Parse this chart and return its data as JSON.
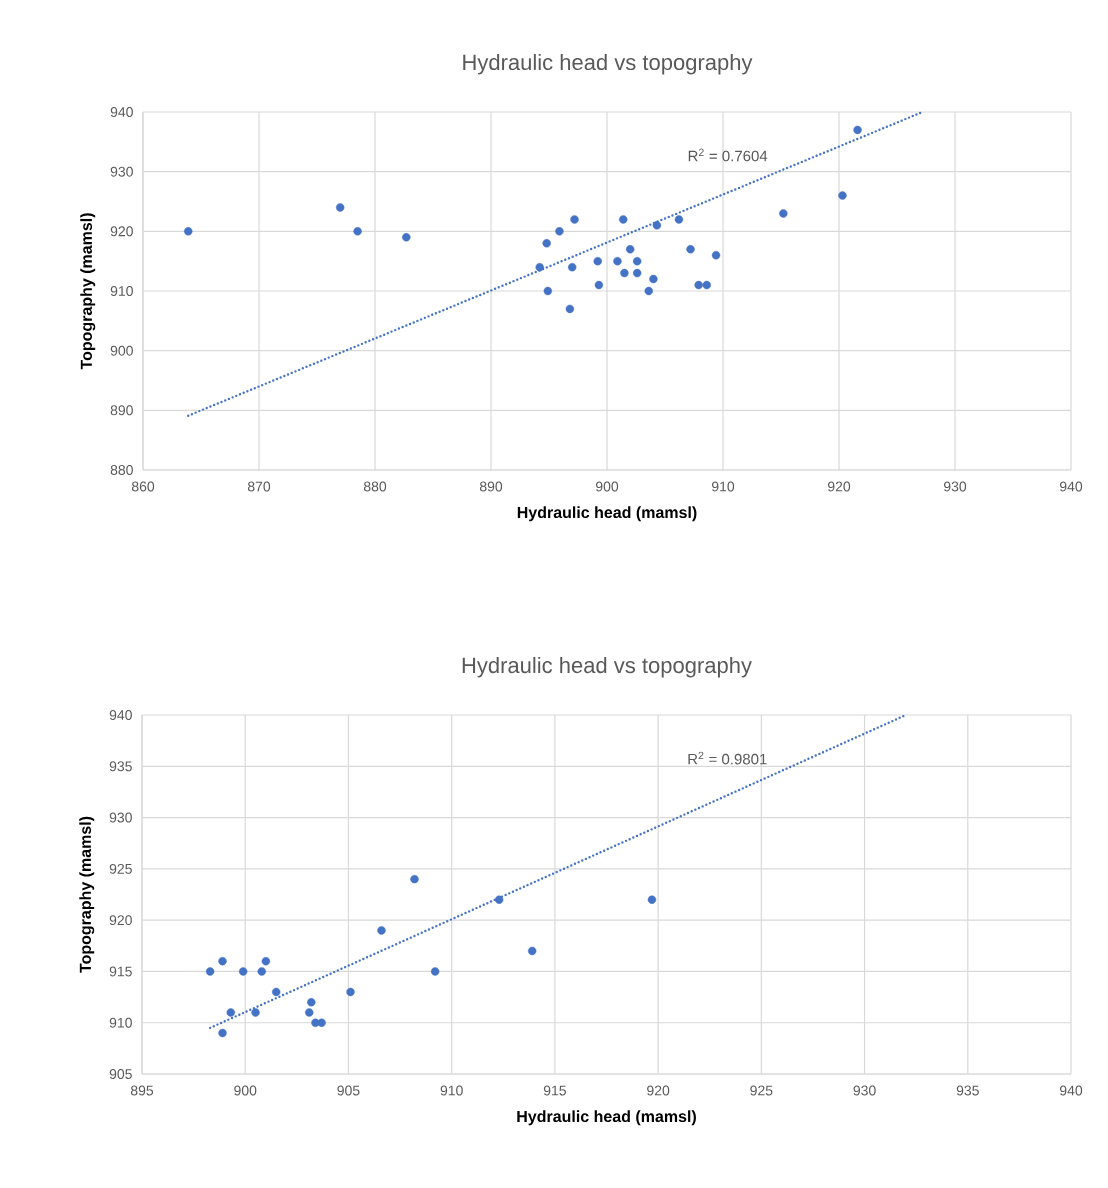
{
  "chart_data": [
    {
      "type": "scatter",
      "title": "Hydraulic head vs topography",
      "xlabel": "Hydraulic head (mamsl)",
      "ylabel": "Topography (mamsl)",
      "xlim": [
        860,
        940
      ],
      "xticks": [
        860,
        870,
        880,
        890,
        900,
        910,
        920,
        930,
        940
      ],
      "ylim": [
        880,
        940
      ],
      "yticks": [
        880,
        890,
        900,
        910,
        920,
        930,
        940
      ],
      "grid": true,
      "series": [
        {
          "marker": "circle",
          "color": "#4472c4",
          "x": [
            863.9,
            877.0,
            878.5,
            882.7,
            894.8,
            895.9,
            897.2,
            894.2,
            897.0,
            894.9,
            896.8,
            899.2,
            899.3,
            900.9,
            901.4,
            901.5,
            902.0,
            902.6,
            902.6,
            903.6,
            904.0,
            904.3,
            906.2,
            907.2,
            907.9,
            908.6,
            909.4,
            915.2,
            920.3,
            921.6
          ],
          "values": [
            920,
            924,
            920,
            919,
            918,
            920,
            922,
            914,
            914,
            910,
            907,
            915,
            911,
            915,
            922,
            913,
            917,
            915,
            913,
            910,
            912,
            921,
            922,
            917,
            911,
            911,
            916,
            923,
            926,
            937
          ]
        },
        {
          "type": "line",
          "line_style": "dotted",
          "marker": "none",
          "color": "#4472c4",
          "x": [
            863.9,
            927.2
          ],
          "values": [
            889.1,
            940
          ]
        }
      ],
      "annotations": [
        "R$^{2}$ = 0.7604"
      ]
    },
    {
      "type": "scatter",
      "title": "Hydraulic head vs topography",
      "xlabel": "Hydraulic head (mamsl)",
      "ylabel": "Topography (mamsl)",
      "xlim": [
        895,
        940
      ],
      "xticks": [
        895,
        900,
        905,
        910,
        915,
        920,
        925,
        930,
        935,
        940
      ],
      "ylim": [
        905,
        940
      ],
      "yticks": [
        905,
        910,
        915,
        920,
        925,
        930,
        935,
        940
      ],
      "grid": true,
      "series": [
        {
          "marker": "circle",
          "color": "#4472c4",
          "x": [
            898.3,
            898.9,
            899.3,
            898.9,
            899.9,
            900.8,
            901.0,
            901.5,
            900.5,
            903.2,
            903.1,
            903.4,
            903.7,
            905.1,
            906.6,
            908.2,
            909.2,
            912.3,
            913.9,
            919.7
          ],
          "values": [
            915,
            916,
            911,
            909,
            915,
            915,
            916,
            913,
            911,
            912,
            911,
            910,
            910,
            913,
            919,
            924,
            915,
            922,
            917,
            922
          ]
        },
        {
          "type": "line",
          "line_style": "dotted",
          "marker": "none",
          "color": "#4472c4",
          "x": [
            898.3,
            932.0
          ],
          "values": [
            909.5,
            940
          ]
        }
      ],
      "annotations": [
        "R$^{2}$ = 0.9801"
      ]
    }
  ]
}
